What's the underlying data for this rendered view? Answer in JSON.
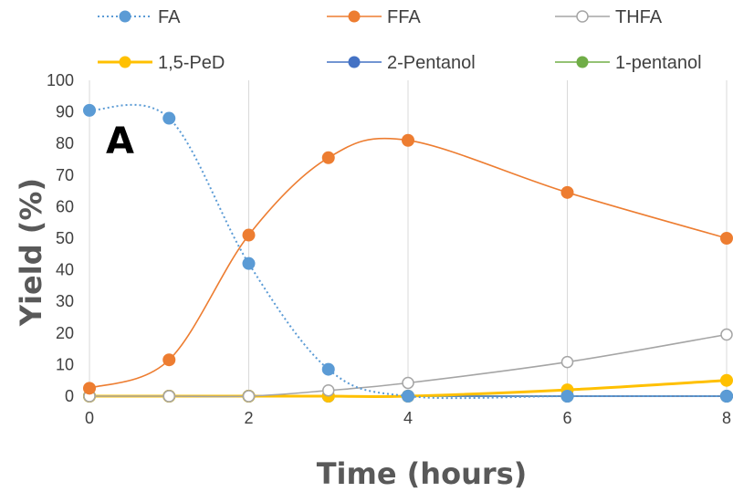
{
  "chart_data": {
    "type": "line",
    "panel_label": "A",
    "xlabel": "Time (hours)",
    "ylabel": "Yield (%)",
    "xlim": [
      0,
      8
    ],
    "ylim": [
      0,
      100
    ],
    "x_ticks": [
      "0",
      "2",
      "4",
      "6",
      "8"
    ],
    "y_ticks": [
      "0",
      "10",
      "20",
      "30",
      "40",
      "50",
      "60",
      "70",
      "80",
      "90",
      "100"
    ],
    "grid": "vertical",
    "legend_position": "top",
    "x": [
      0,
      1,
      2,
      3,
      4,
      6,
      8
    ],
    "series": [
      {
        "name": "FA",
        "color": "#5B9BD5",
        "style": "dotted",
        "marker": "filled",
        "values": [
          90.5,
          88,
          42,
          8.5,
          0,
          0,
          0
        ]
      },
      {
        "name": "FFA",
        "color": "#ED7D31",
        "style": "solid",
        "marker": "filled",
        "values": [
          2.5,
          11.5,
          51,
          75.5,
          81,
          64.5,
          50
        ]
      },
      {
        "name": "THFA",
        "color": "#A5A5A5",
        "style": "solid",
        "marker": "open",
        "values": [
          0,
          0,
          0,
          1.8,
          4.2,
          10.8,
          19.5
        ]
      },
      {
        "name": "1,5-PeD",
        "color": "#FFC000",
        "style": "solid",
        "marker": "filled",
        "values": [
          0,
          0,
          0,
          0,
          0,
          2,
          5
        ]
      },
      {
        "name": "2-Pentanol",
        "color": "#4472C4",
        "style": "solid",
        "marker": "filled",
        "values": [
          0,
          0,
          0,
          0,
          0,
          0,
          0
        ]
      },
      {
        "name": "1-pentanol",
        "color": "#70AD47",
        "style": "solid",
        "marker": "filled",
        "values": [
          0,
          0,
          0,
          0,
          0,
          0,
          0
        ]
      }
    ]
  }
}
